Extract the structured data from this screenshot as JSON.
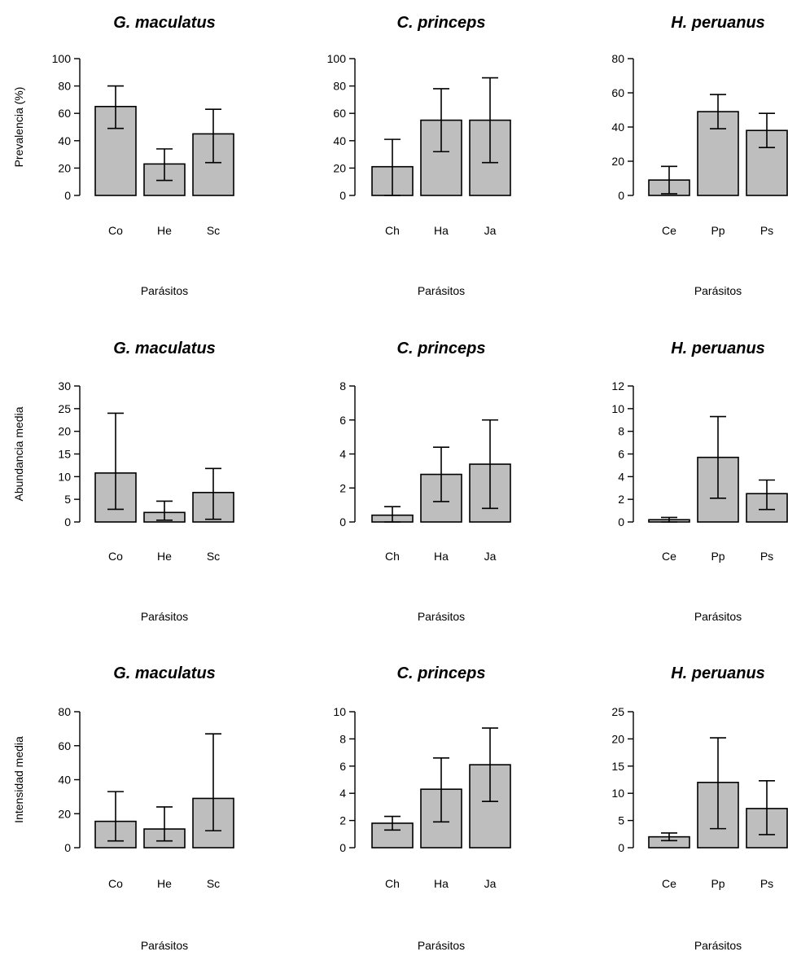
{
  "chart_data": [
    {
      "type": "bar",
      "title": "G. maculatus",
      "xlabel": "Parásitos",
      "ylabel": "Prevalencia (%)",
      "ylim": [
        0,
        100
      ],
      "yticks": [
        0,
        20,
        40,
        60,
        80,
        100
      ],
      "categories": [
        "Co",
        "He",
        "Sc"
      ],
      "values": [
        65,
        23,
        45
      ],
      "error_low": [
        49,
        11,
        24
      ],
      "error_high": [
        80,
        34,
        63
      ]
    },
    {
      "type": "bar",
      "title": "C. princeps",
      "xlabel": "Parásitos",
      "ylabel": "",
      "ylim": [
        0,
        100
      ],
      "yticks": [
        0,
        20,
        40,
        60,
        80,
        100
      ],
      "categories": [
        "Ch",
        "Ha",
        "Ja"
      ],
      "values": [
        21,
        55,
        55
      ],
      "error_low": [
        0,
        32,
        24
      ],
      "error_high": [
        41,
        78,
        86
      ]
    },
    {
      "type": "bar",
      "title": "H. peruanus",
      "xlabel": "Parásitos",
      "ylabel": "",
      "ylim": [
        0,
        80
      ],
      "yticks": [
        0,
        20,
        40,
        60,
        80
      ],
      "categories": [
        "Ce",
        "Pp",
        "Ps"
      ],
      "values": [
        9,
        49,
        38
      ],
      "error_low": [
        1,
        39,
        28
      ],
      "error_high": [
        17,
        59,
        48
      ]
    },
    {
      "type": "bar",
      "title": "G. maculatus",
      "xlabel": "Parásitos",
      "ylabel": "Abundancia media",
      "ylim": [
        0,
        30
      ],
      "yticks": [
        0,
        5,
        10,
        15,
        20,
        25,
        30
      ],
      "categories": [
        "Co",
        "He",
        "Sc"
      ],
      "values": [
        10.8,
        2.1,
        6.5
      ],
      "error_low": [
        2.8,
        0.4,
        0.6
      ],
      "error_high": [
        24,
        4.6,
        11.8
      ]
    },
    {
      "type": "bar",
      "title": "C. princeps",
      "xlabel": "Parásitos",
      "ylabel": "",
      "ylim": [
        0,
        8
      ],
      "yticks": [
        0,
        2,
        4,
        6,
        8
      ],
      "categories": [
        "Ch",
        "Ha",
        "Ja"
      ],
      "values": [
        0.4,
        2.8,
        3.4
      ],
      "error_low": [
        0,
        1.2,
        0.8
      ],
      "error_high": [
        0.9,
        4.4,
        6.0
      ]
    },
    {
      "type": "bar",
      "title": "H. peruanus",
      "xlabel": "Parásitos",
      "ylabel": "",
      "ylim": [
        0,
        12
      ],
      "yticks": [
        0,
        2,
        4,
        6,
        8,
        10,
        12
      ],
      "categories": [
        "Ce",
        "Pp",
        "Ps"
      ],
      "values": [
        0.2,
        5.7,
        2.5
      ],
      "error_low": [
        0,
        2.1,
        1.1
      ],
      "error_high": [
        0.4,
        9.3,
        3.7
      ]
    },
    {
      "type": "bar",
      "title": "G. maculatus",
      "xlabel": "Parásitos",
      "ylabel": "Intensidad media",
      "ylim": [
        0,
        80
      ],
      "yticks": [
        0,
        20,
        40,
        60,
        80
      ],
      "categories": [
        "Co",
        "He",
        "Sc"
      ],
      "values": [
        15.5,
        11,
        29
      ],
      "error_low": [
        4,
        4,
        10
      ],
      "error_high": [
        33,
        24,
        67
      ]
    },
    {
      "type": "bar",
      "title": "C. princeps",
      "xlabel": "Parásitos",
      "ylabel": "",
      "ylim": [
        0,
        10
      ],
      "yticks": [
        0,
        2,
        4,
        6,
        8,
        10
      ],
      "categories": [
        "Ch",
        "Ha",
        "Ja"
      ],
      "values": [
        1.8,
        4.3,
        6.1
      ],
      "error_low": [
        1.3,
        1.9,
        3.4
      ],
      "error_high": [
        2.3,
        6.6,
        8.8
      ]
    },
    {
      "type": "bar",
      "title": "H. peruanus",
      "xlabel": "Parásitos",
      "ylabel": "",
      "ylim": [
        0,
        25
      ],
      "yticks": [
        0,
        5,
        10,
        15,
        20,
        25
      ],
      "categories": [
        "Ce",
        "Pp",
        "Ps"
      ],
      "values": [
        2.0,
        12.0,
        7.2
      ],
      "error_low": [
        1.3,
        3.5,
        2.4
      ],
      "error_high": [
        2.7,
        20.2,
        12.3
      ]
    }
  ]
}
